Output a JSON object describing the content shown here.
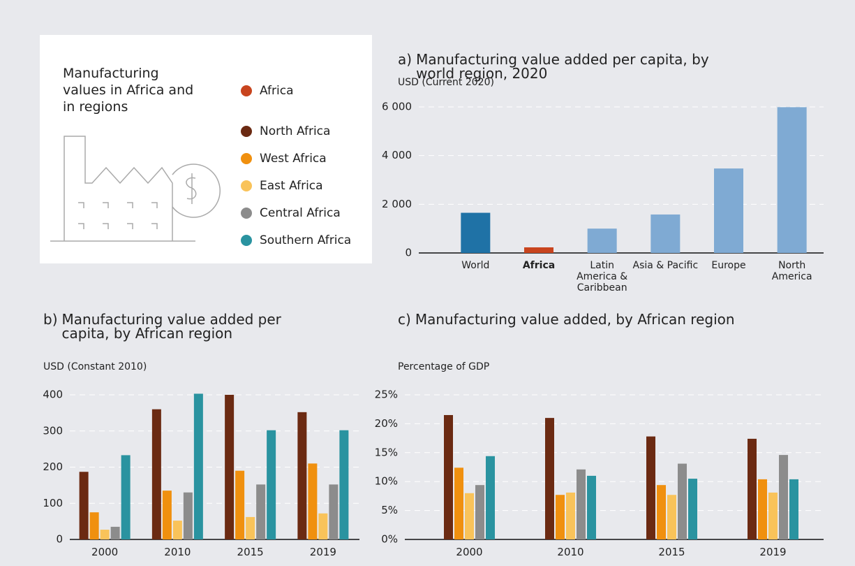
{
  "legend": {
    "title": "Manufacturing values in Africa and in regions",
    "items": [
      {
        "name": "Africa",
        "color": "#c8441e"
      }
    ]
  },
  "chart_data": [
    {
      "type": "bar",
      "label": "a)",
      "title": "Manufacturing value added per capita, by world region, 2020",
      "ylabel": "USD (Current 2020)",
      "categories": [
        "World",
        "Africa",
        "Latin America & Caribbean",
        "Asia & Pacific",
        "Europe",
        "North America"
      ],
      "values": [
        1650,
        230,
        1000,
        1580,
        3470,
        5990
      ],
      "colors": [
        "#1f72a6",
        "#c8441e",
        "#7faad3",
        "#7faad3",
        "#7faad3",
        "#7faad3"
      ],
      "highlight": 1,
      "ylim": [
        0,
        6000
      ],
      "yticks": [
        0,
        {
          "value": 2000,
          "label": "2 000"
        },
        {
          "value": 4000,
          "label": "4 000"
        },
        {
          "value": 6000,
          "label": "6 000"
        }
      ],
      "grid": true
    },
    {
      "type": "bar",
      "label": "b)",
      "title": "Manufacturing value added per capita, by African region",
      "ylabel": "USD (Constant 2010)",
      "categories": [
        "2000",
        "2010",
        "2015",
        "2019"
      ],
      "series": [
        {
          "name": "North Africa",
          "color": "#6b2a12",
          "values": [
            187,
            360,
            400,
            352
          ]
        },
        {
          "name": "West Africa",
          "color": "#f0900f",
          "values": [
            75,
            135,
            190,
            210
          ]
        },
        {
          "name": "East Africa",
          "color": "#f9c35a",
          "values": [
            27,
            52,
            62,
            72
          ]
        },
        {
          "name": "Central Africa",
          "color": "#8c8c8c",
          "values": [
            35,
            130,
            152,
            152
          ]
        },
        {
          "name": "Southern Africa",
          "color": "#2a93a0",
          "values": [
            233,
            403,
            302,
            302
          ]
        }
      ],
      "ylim": [
        0,
        400
      ],
      "yticks": [
        0,
        100,
        200,
        300,
        400
      ],
      "grid": true
    },
    {
      "type": "bar",
      "label": "c)",
      "title": "Manufacturing value added, by African region",
      "ylabel": "Percentage of GDP",
      "categories": [
        "2000",
        "2010",
        "2015",
        "2019"
      ],
      "series": [
        {
          "color": "#6b2a12",
          "values": [
            21.5,
            21,
            17.8,
            17.4
          ]
        },
        {
          "color": "#f0900f",
          "values": [
            12.4,
            7.7,
            9.4,
            10.4
          ]
        },
        {
          "color": "#f9c35a",
          "values": [
            8,
            8.1,
            7.7,
            8.1
          ]
        },
        {
          "color": "#8c8c8c",
          "values": [
            9.4,
            12.1,
            13.1,
            14.6
          ]
        },
        {
          "color": "#2a93a0",
          "values": [
            14.4,
            11,
            10.5,
            10.4
          ]
        }
      ],
      "ylim": [
        0,
        25
      ],
      "yticks": [
        {
          "value": 0,
          "label": "0%"
        },
        {
          "value": 5,
          "label": "5%"
        },
        {
          "value": 10,
          "label": "10%"
        },
        {
          "value": 15,
          "label": "15%"
        },
        {
          "value": 20,
          "label": "20%"
        },
        {
          "value": 25,
          "label": "25%"
        }
      ],
      "grid": true
    }
  ]
}
